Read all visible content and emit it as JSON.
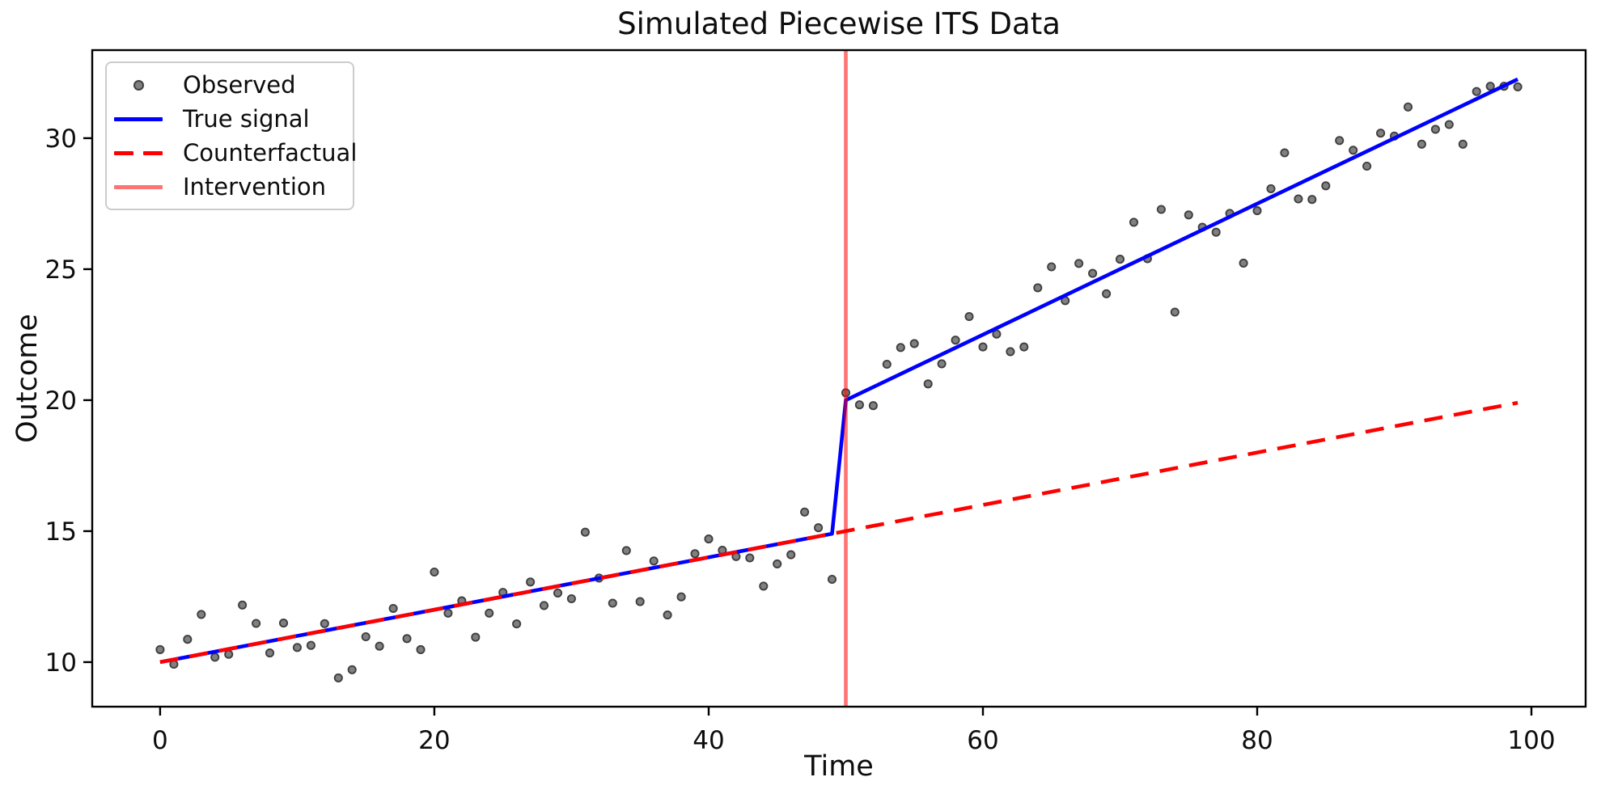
{
  "title": "Simulated Piecewise ITS Data",
  "axes": {
    "xlabel": "Time",
    "ylabel": "Outcome"
  },
  "colors": {
    "observed_fill": "#808080",
    "observed_edge": "#404040",
    "true_signal": "#0000ff",
    "counterfactual": "#ff0000",
    "intervention": "#ff7373",
    "intervention_rgba": "rgba(255,0,0,0.55)",
    "spine": "#000000",
    "legend_border": "#cccccc"
  },
  "legend": {
    "position": "upper left",
    "items": [
      {
        "label": "Observed",
        "marker": "dot",
        "color": "#808080",
        "edge": "#404040"
      },
      {
        "label": "True signal",
        "marker": "line",
        "color": "#0000ff"
      },
      {
        "label": "Counterfactual",
        "marker": "dashed",
        "color": "#ff0000"
      },
      {
        "label": "Intervention",
        "marker": "line",
        "color": "#ff7373"
      }
    ]
  },
  "chart_data": {
    "type": "scatter",
    "title": "Simulated Piecewise ITS Data",
    "xlabel": "Time",
    "ylabel": "Outcome",
    "xlim": [
      -4.95,
      103.95
    ],
    "ylim": [
      8.3,
      33.36
    ],
    "xticks": [
      0,
      20,
      40,
      60,
      80,
      100
    ],
    "yticks": [
      10,
      15,
      20,
      25,
      30
    ],
    "grid": false,
    "legend_position": "upper left",
    "intervention_time": 50,
    "series": [
      {
        "name": "Observed",
        "type": "scatter",
        "color": "#808080",
        "edge": "#404040",
        "x": [
          0,
          1,
          2,
          3,
          4,
          5,
          6,
          7,
          8,
          9,
          10,
          11,
          12,
          13,
          14,
          15,
          16,
          17,
          18,
          19,
          20,
          21,
          22,
          23,
          24,
          25,
          26,
          27,
          28,
          29,
          30,
          31,
          32,
          33,
          34,
          35,
          36,
          37,
          38,
          39,
          40,
          41,
          42,
          43,
          44,
          45,
          46,
          47,
          48,
          49,
          50,
          51,
          52,
          53,
          54,
          55,
          56,
          57,
          58,
          59,
          60,
          61,
          62,
          63,
          64,
          65,
          66,
          67,
          68,
          69,
          70,
          71,
          72,
          73,
          74,
          75,
          76,
          77,
          78,
          79,
          80,
          81,
          82,
          83,
          84,
          85,
          86,
          87,
          88,
          89,
          90,
          91,
          92,
          93,
          94,
          95,
          96,
          97,
          98,
          99
        ],
        "y": [
          10.48,
          9.92,
          10.87,
          11.82,
          10.19,
          10.3,
          12.18,
          11.48,
          10.35,
          11.49,
          10.56,
          10.64,
          11.47,
          9.4,
          9.71,
          10.97,
          10.61,
          12.05,
          10.9,
          10.48,
          13.44,
          11.87,
          12.34,
          10.95,
          11.87,
          12.66,
          11.46,
          13.06,
          12.16,
          12.64,
          12.42,
          14.96,
          13.21,
          12.25,
          14.26,
          12.31,
          13.86,
          11.8,
          12.49,
          14.14,
          14.7,
          14.27,
          14.03,
          13.98,
          12.9,
          13.75,
          14.1,
          15.73,
          15.13,
          13.16,
          20.28,
          19.82,
          19.79,
          21.37,
          22.01,
          22.16,
          20.62,
          21.39,
          22.29,
          23.19,
          22.03,
          22.52,
          21.85,
          22.03,
          24.29,
          25.09,
          23.8,
          25.22,
          24.84,
          24.06,
          25.38,
          26.79,
          25.4,
          27.28,
          23.36,
          27.07,
          26.6,
          26.41,
          27.13,
          25.23,
          27.23,
          28.07,
          29.44,
          27.68,
          27.66,
          28.18,
          29.91,
          29.54,
          28.93,
          30.19,
          30.08,
          31.19,
          29.77,
          30.34,
          30.52,
          29.77,
          31.78,
          31.98,
          31.98,
          31.96
        ]
      },
      {
        "name": "True signal",
        "type": "line",
        "style": "solid",
        "color": "#0000ff",
        "x": [
          0,
          49,
          50,
          99
        ],
        "y": [
          10.0,
          14.9,
          20.0,
          32.25
        ],
        "pre_slope": 0.1,
        "post_slope": 0.25,
        "level_jump_at_intervention": 5.0
      },
      {
        "name": "Counterfactual",
        "type": "line",
        "style": "dashed",
        "color": "#ff0000",
        "x": [
          0,
          99
        ],
        "y": [
          10.0,
          19.9
        ]
      },
      {
        "name": "Intervention",
        "type": "vline",
        "color": "#ff7373",
        "x": 50
      }
    ]
  }
}
